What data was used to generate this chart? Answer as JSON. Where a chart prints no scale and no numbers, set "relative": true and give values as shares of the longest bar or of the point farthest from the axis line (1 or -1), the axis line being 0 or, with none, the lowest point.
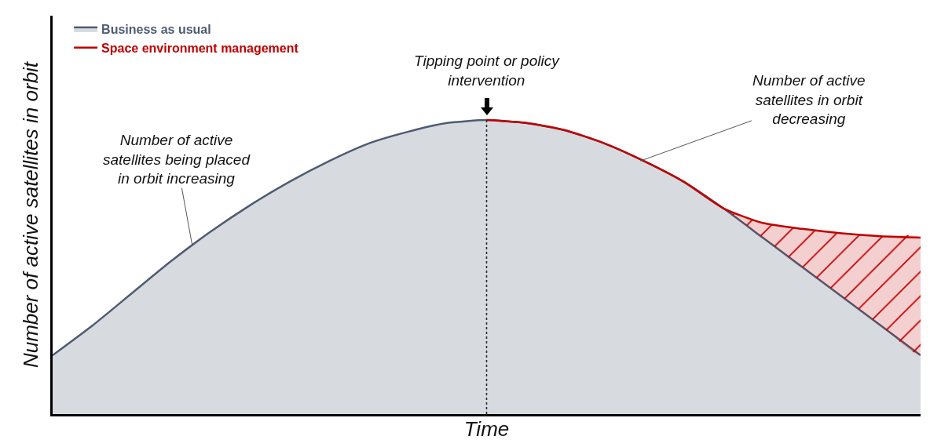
{
  "chart_data": {
    "type": "area",
    "relative": true,
    "xlabel": "Time",
    "ylabel": "Number of active satellites in orbit",
    "legend": "top left",
    "categories": [
      null,
      null,
      null,
      null,
      null,
      null,
      null,
      null,
      null,
      null,
      null,
      null,
      null,
      null,
      null,
      null,
      null,
      null,
      null,
      null,
      null,
      null,
      null
    ],
    "series": [
      {
        "name": "Business as usual",
        "color": "#4f5b72",
        "values": [
          0.2,
          0.3,
          0.41,
          0.52,
          0.62,
          0.71,
          0.79,
          0.86,
          0.92,
          0.96,
          0.99,
          1.0,
          0.99,
          0.965,
          0.92,
          0.86,
          0.79,
          0.7,
          0.6,
          0.5,
          0.4,
          0.3,
          0.2
        ]
      },
      {
        "name": "Space environment management",
        "color": "#c00000",
        "values": [
          null,
          null,
          null,
          null,
          null,
          null,
          null,
          null,
          null,
          null,
          null,
          1.0,
          0.99,
          0.965,
          0.92,
          0.86,
          0.79,
          0.7,
          0.65,
          0.63,
          0.615,
          0.605,
          0.6
        ]
      }
    ],
    "annotations": [
      "Number of active\nsatellites being placed\nin orbit increasing",
      {
        "text": "Tipping point or policy\nintervention",
        "y": 1.0
      },
      "Number of active\nsatellites in orbit\ndecreasing"
    ]
  }
}
